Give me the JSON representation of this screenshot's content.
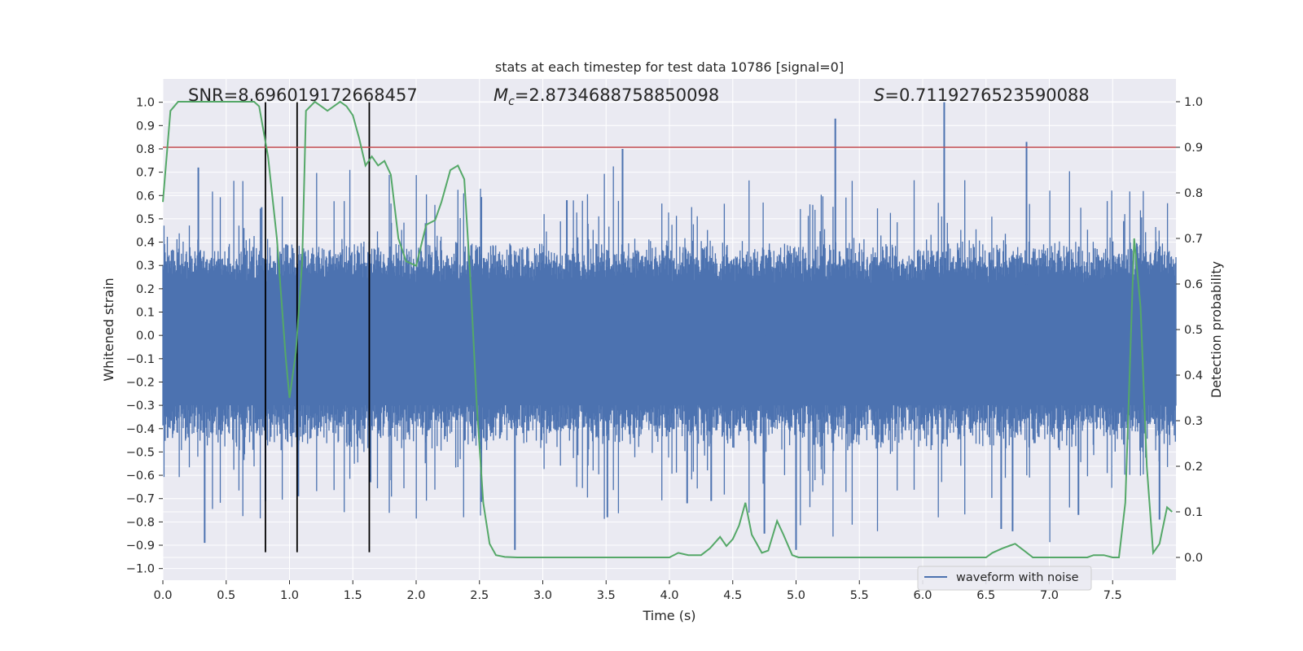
{
  "chart_data": {
    "type": "line",
    "title": "stats at each timestep for test data 10786 [signal=0]",
    "xlabel": "Time (s)",
    "ylabel": "Whitened strain",
    "y2label": "Detection probability",
    "xlim": [
      0.0,
      8.0
    ],
    "ylim": [
      -1.05,
      1.1
    ],
    "y2lim": [
      -0.05,
      1.05
    ],
    "xticks": [
      "0.0",
      "0.5",
      "1.0",
      "1.5",
      "2.0",
      "2.5",
      "3.0",
      "3.5",
      "4.0",
      "4.5",
      "5.0",
      "5.5",
      "6.0",
      "6.5",
      "7.0",
      "7.5"
    ],
    "yticks": [
      "−1.0",
      "−0.9",
      "−0.8",
      "−0.7",
      "−0.6",
      "−0.5",
      "−0.4",
      "−0.3",
      "−0.2",
      "−0.1",
      "0.0",
      "0.1",
      "0.2",
      "0.3",
      "0.4",
      "0.5",
      "0.6",
      "0.7",
      "0.8",
      "0.9",
      "1.0"
    ],
    "y2ticks": [
      "0.0",
      "0.1",
      "0.2",
      "0.3",
      "0.4",
      "0.5",
      "0.6",
      "0.7",
      "0.8",
      "0.9",
      "1.0"
    ],
    "annotations": {
      "snr": "SNR=8.696019172668457",
      "mc_symbol": "M",
      "mc_sub": "c",
      "mc_value": "=2.8734688758850098",
      "s_symbol": "S",
      "s_value": "=0.7119276523590088"
    },
    "threshold": {
      "axis": "y2",
      "value": 0.9,
      "color": "#c44e52"
    },
    "vertical_markers": {
      "x": [
        0.81,
        1.06,
        1.63
      ],
      "y_range": [
        -0.93,
        1.0
      ],
      "color": "#000000"
    },
    "waveform": {
      "name": "waveform with noise",
      "color": "#4c72b0",
      "points": 1800,
      "core_amplitude": 0.3,
      "spikes": [
        {
          "x": 0.33,
          "y": -0.89
        },
        {
          "x": 0.28,
          "y": 0.72
        },
        {
          "x": 0.78,
          "y": 0.55
        },
        {
          "x": 0.81,
          "y": -0.71
        },
        {
          "x": 1.07,
          "y": -0.69
        },
        {
          "x": 1.64,
          "y": -0.63
        },
        {
          "x": 2.78,
          "y": -0.92
        },
        {
          "x": 3.19,
          "y": 0.58
        },
        {
          "x": 3.51,
          "y": -0.78
        },
        {
          "x": 3.63,
          "y": 0.8
        },
        {
          "x": 4.14,
          "y": -0.72
        },
        {
          "x": 4.33,
          "y": -0.71
        },
        {
          "x": 4.75,
          "y": -0.85
        },
        {
          "x": 5.0,
          "y": -0.92
        },
        {
          "x": 5.31,
          "y": 0.93
        },
        {
          "x": 6.17,
          "y": 1.0
        },
        {
          "x": 6.62,
          "y": -0.83
        },
        {
          "x": 6.71,
          "y": -0.84
        },
        {
          "x": 6.82,
          "y": 0.83
        },
        {
          "x": 7.23,
          "y": -0.77
        },
        {
          "x": 7.87,
          "y": -0.79
        }
      ]
    },
    "detection_probability": {
      "color": "#55a868",
      "x": [
        0.0,
        0.06,
        0.12,
        0.25,
        0.45,
        0.6,
        0.72,
        0.76,
        0.83,
        0.9,
        0.97,
        1.0,
        1.05,
        1.1,
        1.13,
        1.2,
        1.25,
        1.3,
        1.4,
        1.45,
        1.5,
        1.55,
        1.6,
        1.65,
        1.7,
        1.75,
        1.8,
        1.86,
        1.92,
        2.0,
        2.08,
        2.15,
        2.2,
        2.27,
        2.33,
        2.38,
        2.43,
        2.48,
        2.53,
        2.58,
        2.63,
        2.7,
        2.8,
        3.0,
        3.2,
        3.5,
        3.8,
        4.0,
        4.07,
        4.15,
        4.25,
        4.32,
        4.4,
        4.45,
        4.5,
        4.55,
        4.6,
        4.65,
        4.73,
        4.78,
        4.85,
        4.9,
        4.97,
        5.02,
        5.2,
        5.5,
        5.8,
        6.1,
        6.4,
        6.5,
        6.55,
        6.63,
        6.68,
        6.73,
        6.8,
        6.87,
        6.97,
        7.15,
        7.3,
        7.35,
        7.43,
        7.5,
        7.55,
        7.6,
        7.67,
        7.72,
        7.77,
        7.82,
        7.87,
        7.93,
        7.97
      ],
      "y": [
        0.78,
        0.98,
        1.0,
        1.0,
        1.0,
        1.0,
        1.0,
        0.99,
        0.88,
        0.7,
        0.44,
        0.35,
        0.45,
        0.65,
        0.98,
        1.0,
        0.99,
        0.98,
        1.0,
        0.99,
        0.97,
        0.92,
        0.86,
        0.88,
        0.86,
        0.87,
        0.84,
        0.7,
        0.65,
        0.64,
        0.73,
        0.74,
        0.78,
        0.85,
        0.86,
        0.83,
        0.6,
        0.33,
        0.12,
        0.03,
        0.005,
        0.001,
        0.0,
        0.0,
        0.0,
        0.0,
        0.0,
        0.0,
        0.01,
        0.005,
        0.005,
        0.02,
        0.045,
        0.025,
        0.04,
        0.07,
        0.12,
        0.05,
        0.01,
        0.015,
        0.08,
        0.05,
        0.005,
        0.0,
        0.0,
        0.0,
        0.0,
        0.0,
        0.0,
        0.0,
        0.01,
        0.02,
        0.025,
        0.03,
        0.015,
        0.0,
        0.0,
        0.0,
        0.0,
        0.005,
        0.005,
        0.0,
        0.0,
        0.12,
        0.7,
        0.55,
        0.2,
        0.01,
        0.03,
        0.11,
        0.1
      ]
    },
    "legend": {
      "position": "lower-center-right",
      "label": "waveform with noise"
    },
    "grid": true,
    "colors": {
      "background": "#eaeaf2",
      "grid": "#ffffff",
      "text": "#262626"
    }
  }
}
